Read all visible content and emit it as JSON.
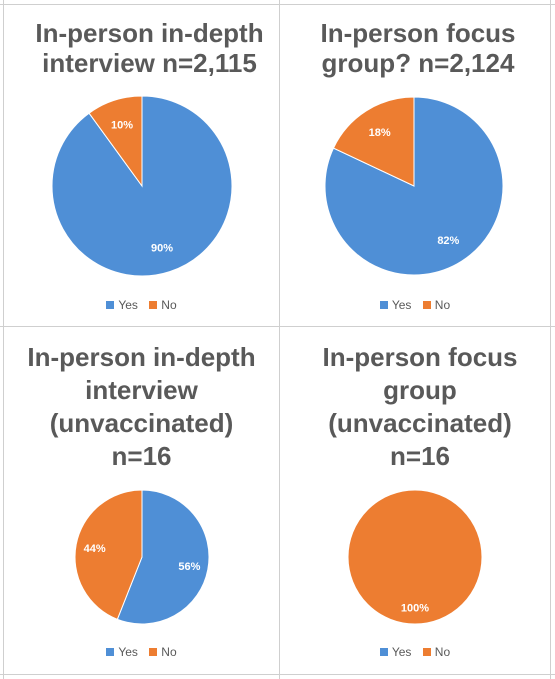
{
  "colors": {
    "yes": "#4F8FD6",
    "no": "#ED7D31",
    "border": "#cfcfcf",
    "title": "#595959"
  },
  "chart_data": [
    {
      "type": "pie",
      "title_lines": [
        "In-person in-depth",
        "interview n=2,115"
      ],
      "categories": [
        "Yes",
        "No"
      ],
      "values": [
        90,
        10
      ],
      "data_labels": [
        "90%",
        "10%"
      ],
      "legend_position": "bottom"
    },
    {
      "type": "pie",
      "title_lines": [
        "In-person focus",
        "group? n=2,124"
      ],
      "categories": [
        "Yes",
        "No"
      ],
      "values": [
        82,
        18
      ],
      "data_labels": [
        "82%",
        "18%"
      ],
      "legend_position": "bottom"
    },
    {
      "type": "pie",
      "title_lines": [
        "In-person in-depth",
        "interview",
        "(unvaccinated)",
        "n=16"
      ],
      "categories": [
        "Yes",
        "No"
      ],
      "values": [
        56,
        44
      ],
      "data_labels": [
        "56%",
        "44%"
      ],
      "legend_position": "bottom"
    },
    {
      "type": "pie",
      "title_lines": [
        "In-person focus",
        "group",
        "(unvaccinated)",
        "n=16"
      ],
      "categories": [
        "Yes",
        "No"
      ],
      "values": [
        0,
        100
      ],
      "data_labels": [
        "",
        "100%"
      ],
      "legend_position": "bottom"
    }
  ]
}
